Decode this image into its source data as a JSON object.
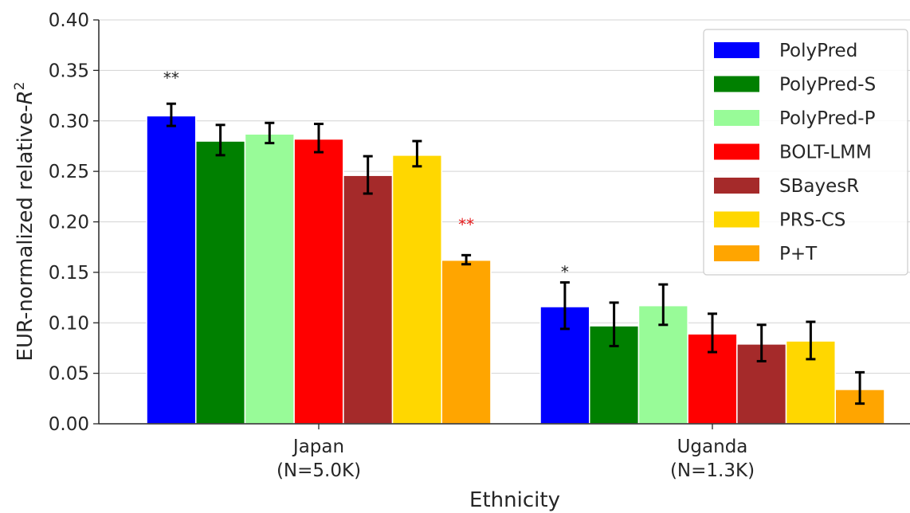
{
  "chart_data": {
    "type": "bar",
    "xlabel": "Ethnicity",
    "ylabel": "EUR-normalized relative-",
    "ylabel_symbol": "R",
    "ylabel_superscript": "2",
    "ylim": [
      0,
      0.4
    ],
    "yticks": [
      "0.00",
      "0.05",
      "0.10",
      "0.15",
      "0.20",
      "0.25",
      "0.30",
      "0.35",
      "0.40"
    ],
    "grid": true,
    "legend_position": "top-right",
    "categories": [
      {
        "line1": "Japan",
        "line2": "(N=5.0K)"
      },
      {
        "line1": "Uganda",
        "line2": "(N=1.3K)"
      }
    ],
    "series": [
      {
        "name": "PolyPred",
        "color": "#0000ff",
        "values": [
          0.305,
          0.116
        ],
        "err_low": [
          0.295,
          0.094
        ],
        "err_high": [
          0.317,
          0.14
        ]
      },
      {
        "name": "PolyPred-S",
        "color": "#008000",
        "values": [
          0.28,
          0.097
        ],
        "err_low": [
          0.266,
          0.077
        ],
        "err_high": [
          0.296,
          0.12
        ]
      },
      {
        "name": "PolyPred-P",
        "color": "#98fb98",
        "values": [
          0.287,
          0.117
        ],
        "err_low": [
          0.278,
          0.098
        ],
        "err_high": [
          0.298,
          0.138
        ]
      },
      {
        "name": "BOLT-LMM",
        "color": "#ff0000",
        "values": [
          0.282,
          0.089
        ],
        "err_low": [
          0.269,
          0.071
        ],
        "err_high": [
          0.297,
          0.109
        ]
      },
      {
        "name": "SBayesR",
        "color": "#a52a2a",
        "values": [
          0.246,
          0.079
        ],
        "err_low": [
          0.228,
          0.062
        ],
        "err_high": [
          0.265,
          0.098
        ]
      },
      {
        "name": "PRS-CS",
        "color": "#ffd700",
        "values": [
          0.266,
          0.082
        ],
        "err_low": [
          0.255,
          0.064
        ],
        "err_high": [
          0.28,
          0.101
        ]
      },
      {
        "name": "P+T",
        "color": "#ffa500",
        "values": [
          0.162,
          0.034
        ],
        "err_low": [
          0.158,
          0.02
        ],
        "err_high": [
          0.167,
          0.051
        ]
      }
    ],
    "annotations": [
      {
        "text": "**",
        "series": 0,
        "category": 0,
        "y": 0.343,
        "color": "#262626"
      },
      {
        "text": "**",
        "series": 6,
        "category": 0,
        "y": 0.198,
        "color": "#e41a1c"
      },
      {
        "text": "*",
        "series": 0,
        "category": 1,
        "y": 0.151,
        "color": "#262626"
      }
    ]
  }
}
